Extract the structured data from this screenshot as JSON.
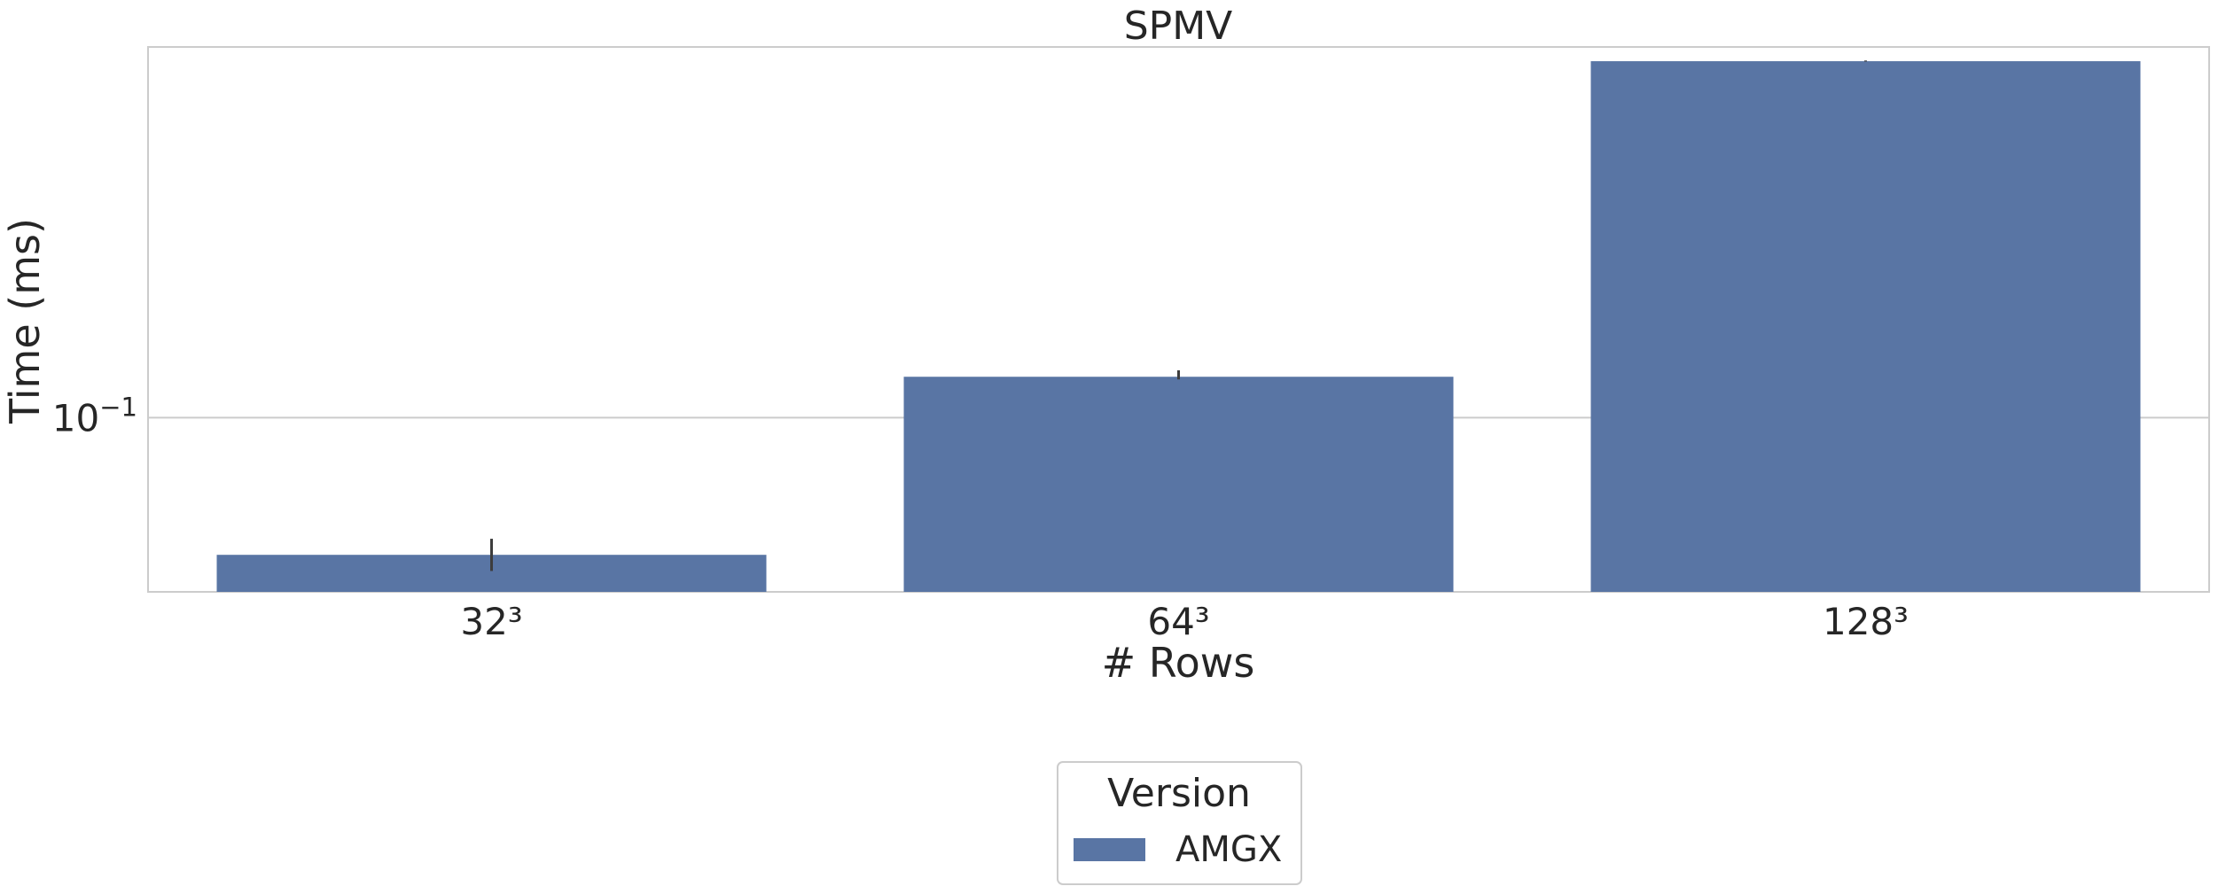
{
  "chart_data": {
    "type": "bar",
    "title": "SPMV",
    "xlabel": "# Rows",
    "ylabel": "Time (ms)",
    "yscale": "log",
    "ylim": [
      0.0421,
      0.63
    ],
    "y_ticks": [
      {
        "value": 0.1,
        "base": "10",
        "exp": "−1"
      }
    ],
    "categories": [
      "32³",
      "64³",
      "128³"
    ],
    "series": [
      {
        "name": "AMGX",
        "color": "#5975a4",
        "values": [
          0.0506,
          0.1225,
          0.587
        ],
        "error_low": [
          0.0467,
          0.1209,
          0.586
        ],
        "error_high": [
          0.0548,
          0.1265,
          0.589
        ]
      }
    ],
    "legend": {
      "title": "Version",
      "position": "bottom-center"
    },
    "grid": {
      "y": true,
      "x": false
    }
  }
}
